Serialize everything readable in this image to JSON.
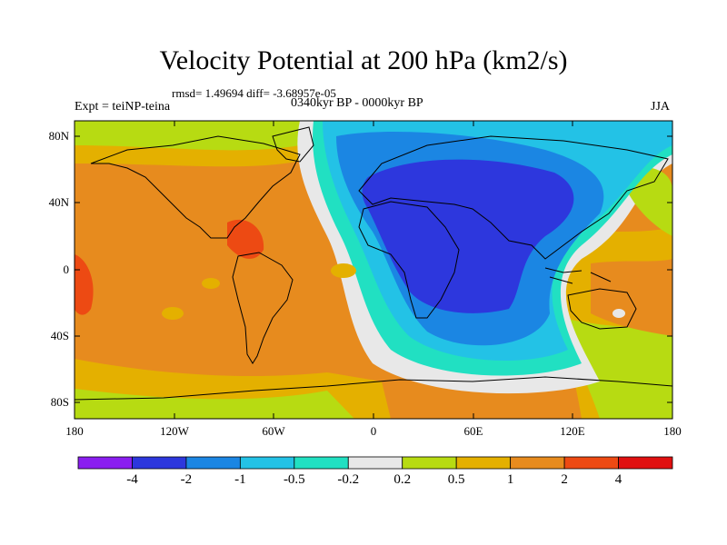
{
  "title": "Velocity Potential at 200 hPa (km2/s)",
  "stats_text": "rmsd= 1.49694 diff= -3.68957e-05",
  "experiment_text": "Expt = teiNP-teina",
  "period_text": "0340kyr BP - 0000kyr BP",
  "season": "JJA",
  "lat_labels": [
    "80N",
    "40N",
    "0",
    "40S",
    "80S"
  ],
  "lon_labels": [
    "180",
    "120W",
    "60W",
    "0",
    "60E",
    "120E",
    "180"
  ],
  "colorbar": {
    "labels": [
      "-4",
      "-2",
      "-1",
      "-0.5",
      "-0.2",
      "0.2",
      "0.5",
      "1",
      "2",
      "4"
    ],
    "colors": [
      "#8a1ef0",
      "#2d37dd",
      "#1b86e3",
      "#23c2e6",
      "#21e0c2",
      "#e8e8e8",
      "#b7db12",
      "#e4b000",
      "#e78b1e",
      "#ed4a13",
      "#e01010"
    ]
  },
  "ocean_color": "#e78b1e"
}
